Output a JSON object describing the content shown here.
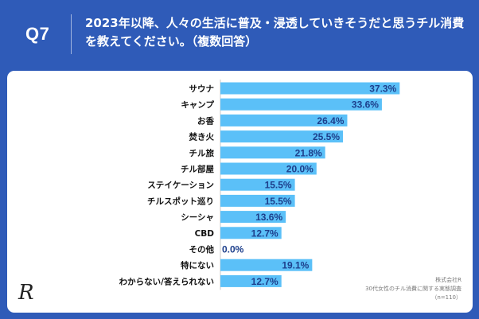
{
  "header": {
    "question_no": "Q7",
    "title": "2023年以降、人々の生活に普及・浸透していきそうだと思うチル消費を教えてください。（複数回答）"
  },
  "colors": {
    "background": "#2f5bb8",
    "bar": "#5bc0f8",
    "value_text": "#1d3f8c",
    "label_text": "#111111",
    "panel": "#ffffff"
  },
  "chart_data": {
    "type": "bar",
    "orientation": "horizontal",
    "categories": [
      "サウナ",
      "キャンプ",
      "お香",
      "焚き火",
      "チル旅",
      "チル部屋",
      "ステイケーション",
      "チルスポット巡り",
      "シーシャ",
      "CBD",
      "その他",
      "特にない",
      "わからない/答えられない"
    ],
    "values": [
      37.3,
      33.6,
      26.4,
      25.5,
      21.8,
      20.0,
      15.5,
      15.5,
      13.6,
      12.7,
      0.0,
      19.1,
      12.7
    ],
    "value_labels": [
      "37.3%",
      "33.6%",
      "26.4%",
      "25.5%",
      "21.8%",
      "20.0%",
      "15.5%",
      "15.5%",
      "13.6%",
      "12.7%",
      "0.0%",
      "19.1%",
      "12.7%"
    ],
    "xlim": [
      0,
      50
    ],
    "grid": false
  },
  "logo": {
    "letter": "R"
  },
  "source": {
    "line1": "株式会社R",
    "line2": "30代女性のチル消費に関する実態調査",
    "line3": "（n=110）"
  }
}
